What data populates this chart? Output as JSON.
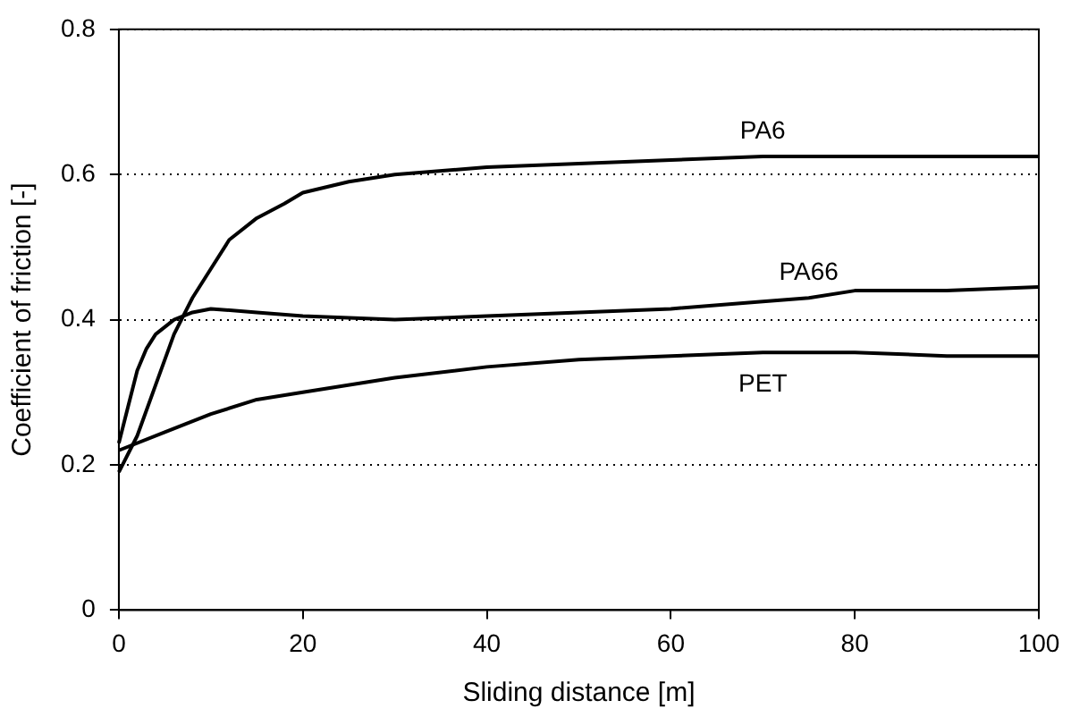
{
  "chart_data": {
    "type": "line",
    "xlabel": "Sliding distance [m]",
    "ylabel": "Coefficient of friction [-]",
    "xlim": [
      0,
      100
    ],
    "xticks": [
      0,
      20,
      40,
      60,
      80,
      100
    ],
    "ylim": [
      0,
      0.8
    ],
    "yticks": [
      0,
      0.2,
      0.4,
      0.6,
      0.8
    ],
    "grid": "y",
    "legend": false,
    "marker": "none",
    "line_style": "solid",
    "series": [
      {
        "name": "PA6",
        "color": "#000000",
        "x": [
          0,
          2,
          4,
          6,
          8,
          10,
          12,
          15,
          18,
          20,
          25,
          30,
          40,
          50,
          60,
          70,
          80,
          90,
          100
        ],
        "values": [
          0.19,
          0.24,
          0.31,
          0.38,
          0.43,
          0.47,
          0.51,
          0.54,
          0.56,
          0.575,
          0.59,
          0.6,
          0.61,
          0.615,
          0.62,
          0.625,
          0.625,
          0.625,
          0.625
        ]
      },
      {
        "name": "PA66",
        "color": "#000000",
        "x": [
          0,
          1,
          2,
          3,
          4,
          6,
          8,
          10,
          15,
          20,
          30,
          40,
          50,
          60,
          70,
          75,
          80,
          90,
          100
        ],
        "values": [
          0.23,
          0.28,
          0.33,
          0.36,
          0.38,
          0.4,
          0.41,
          0.415,
          0.41,
          0.405,
          0.4,
          0.405,
          0.41,
          0.415,
          0.425,
          0.43,
          0.44,
          0.44,
          0.445
        ]
      },
      {
        "name": "PET",
        "color": "#000000",
        "x": [
          0,
          5,
          10,
          15,
          20,
          30,
          40,
          50,
          60,
          70,
          80,
          90,
          100
        ],
        "values": [
          0.22,
          0.245,
          0.27,
          0.29,
          0.3,
          0.32,
          0.335,
          0.345,
          0.35,
          0.355,
          0.355,
          0.35,
          0.35
        ]
      }
    ]
  }
}
